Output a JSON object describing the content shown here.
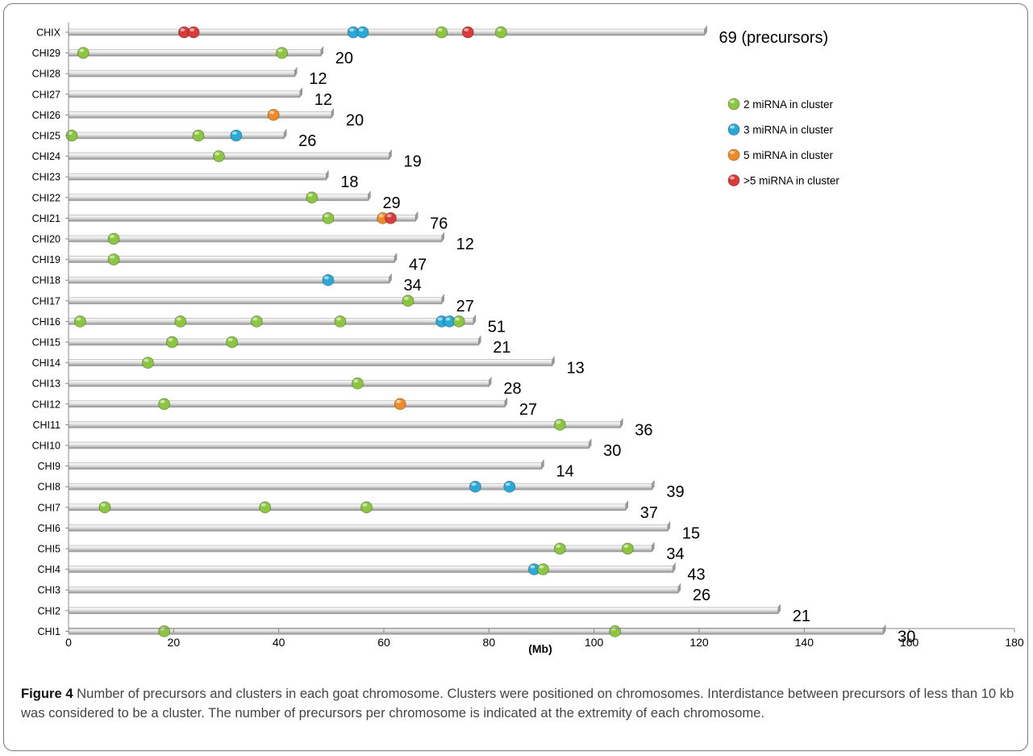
{
  "chart_data": {
    "type": "scatter",
    "xlabel": "(Mb)",
    "xlim": [
      0,
      180
    ],
    "xticks": [
      "0",
      "20",
      "40",
      "60",
      "80",
      "100",
      "120",
      "140",
      "160",
      "180"
    ],
    "legend_position": "right-top",
    "legend": [
      {
        "key": "two",
        "label": "2 miRNA in cluster",
        "color": "#8cc63e"
      },
      {
        "key": "three",
        "label": "3 miRNA in cluster",
        "color": "#29a9d8"
      },
      {
        "key": "five",
        "label": "5 miRNA in cluster",
        "color": "#f28a24"
      },
      {
        "key": "more",
        "label": ">5 miRNA in cluster",
        "color": "#d93a3a"
      }
    ],
    "chromosomes": [
      {
        "name": "CHIX",
        "length": 121,
        "count": "69 (precursors)",
        "clusters": [
          {
            "x": 22,
            "type": "more"
          },
          {
            "x": 23.8,
            "type": "more"
          },
          {
            "x": 54.2,
            "type": "three"
          },
          {
            "x": 56,
            "type": "three"
          },
          {
            "x": 71,
            "type": "two"
          },
          {
            "x": 76,
            "type": "more"
          },
          {
            "x": 82.3,
            "type": "two"
          }
        ]
      },
      {
        "name": "CHI29",
        "length": 48,
        "count": "20",
        "clusters": [
          {
            "x": 2.8,
            "type": "two"
          },
          {
            "x": 40.6,
            "type": "two"
          }
        ]
      },
      {
        "name": "CHI28",
        "length": 43,
        "count": "12",
        "clusters": []
      },
      {
        "name": "CHI27",
        "length": 44,
        "count": "12",
        "clusters": []
      },
      {
        "name": "CHI26",
        "length": 50,
        "count": "20",
        "clusters": [
          {
            "x": 39,
            "type": "five"
          }
        ]
      },
      {
        "name": "CHI25",
        "length": 41,
        "count": "26",
        "clusters": [
          {
            "x": 0.6,
            "type": "two"
          },
          {
            "x": 24.7,
            "type": "two"
          },
          {
            "x": 31.9,
            "type": "three"
          }
        ]
      },
      {
        "name": "CHI24",
        "length": 61,
        "count": "19",
        "clusters": [
          {
            "x": 28.6,
            "type": "two"
          }
        ]
      },
      {
        "name": "CHI23",
        "length": 49,
        "count": "18",
        "clusters": []
      },
      {
        "name": "CHI22",
        "length": 57,
        "count": "29",
        "clusters": [
          {
            "x": 46.3,
            "type": "two"
          }
        ]
      },
      {
        "name": "CHI21",
        "length": 66,
        "count": "76",
        "clusters": [
          {
            "x": 49.4,
            "type": "two"
          },
          {
            "x": 59.8,
            "type": "five"
          },
          {
            "x": 61.3,
            "type": "more"
          }
        ]
      },
      {
        "name": "CHI20",
        "length": 71,
        "count": "12",
        "clusters": [
          {
            "x": 8.6,
            "type": "two"
          }
        ]
      },
      {
        "name": "CHI19",
        "length": 62,
        "count": "47",
        "clusters": [
          {
            "x": 8.6,
            "type": "two"
          }
        ]
      },
      {
        "name": "CHI18",
        "length": 61,
        "count": "34",
        "clusters": [
          {
            "x": 49.4,
            "type": "three"
          }
        ]
      },
      {
        "name": "CHI17",
        "length": 71,
        "count": "27",
        "clusters": [
          {
            "x": 64.6,
            "type": "two"
          }
        ]
      },
      {
        "name": "CHI16",
        "length": 77,
        "count": "51",
        "clusters": [
          {
            "x": 2.2,
            "type": "two"
          },
          {
            "x": 21.3,
            "type": "two"
          },
          {
            "x": 35.8,
            "type": "two"
          },
          {
            "x": 51.7,
            "type": "two"
          },
          {
            "x": 71,
            "type": "three"
          },
          {
            "x": 72.5,
            "type": "three"
          },
          {
            "x": 74.3,
            "type": "two"
          }
        ]
      },
      {
        "name": "CHI15",
        "length": 78,
        "count": "21",
        "clusters": [
          {
            "x": 19.7,
            "type": "two"
          },
          {
            "x": 31.1,
            "type": "two"
          }
        ]
      },
      {
        "name": "CHI14",
        "length": 92,
        "count": "13",
        "clusters": [
          {
            "x": 15.1,
            "type": "two"
          }
        ]
      },
      {
        "name": "CHI13",
        "length": 80,
        "count": "28",
        "clusters": [
          {
            "x": 55,
            "type": "two"
          }
        ]
      },
      {
        "name": "CHI12",
        "length": 83,
        "count": "27",
        "clusters": [
          {
            "x": 18.2,
            "type": "two"
          },
          {
            "x": 63.1,
            "type": "five"
          }
        ]
      },
      {
        "name": "CHI11",
        "length": 105,
        "count": "36",
        "clusters": [
          {
            "x": 93.5,
            "type": "two"
          }
        ]
      },
      {
        "name": "CHI10",
        "length": 99,
        "count": "30",
        "clusters": []
      },
      {
        "name": "CHI9",
        "length": 90,
        "count": "14",
        "clusters": []
      },
      {
        "name": "CHI8",
        "length": 111,
        "count": "39",
        "clusters": [
          {
            "x": 77.4,
            "type": "three"
          },
          {
            "x": 83.9,
            "type": "three"
          }
        ]
      },
      {
        "name": "CHI7",
        "length": 106,
        "count": "37",
        "clusters": [
          {
            "x": 6.9,
            "type": "two"
          },
          {
            "x": 37.4,
            "type": "two"
          },
          {
            "x": 56.7,
            "type": "two"
          }
        ]
      },
      {
        "name": "CHI6",
        "length": 114,
        "count": "15",
        "clusters": []
      },
      {
        "name": "CHI5",
        "length": 111,
        "count": "34",
        "clusters": [
          {
            "x": 93.5,
            "type": "two"
          },
          {
            "x": 106.4,
            "type": "two"
          }
        ]
      },
      {
        "name": "CHI4",
        "length": 115,
        "count": "43",
        "clusters": [
          {
            "x": 88.6,
            "type": "three"
          },
          {
            "x": 90.3,
            "type": "two"
          }
        ]
      },
      {
        "name": "CHI3",
        "length": 116,
        "count": "26",
        "clusters": []
      },
      {
        "name": "CHI2",
        "length": 135,
        "count": "21",
        "clusters": []
      },
      {
        "name": "CHI1",
        "length": 155,
        "count": "30",
        "clusters": [
          {
            "x": 18.2,
            "type": "two"
          },
          {
            "x": 104,
            "type": "two"
          }
        ]
      }
    ]
  },
  "caption": {
    "title": "Figure 4",
    "text": " Number of precursors and clusters in each goat chromosome. Clusters were positioned on chromosomes. Interdistance between precursors of less than 10 kb was considered to be a cluster. The number of precursors per chromosome is indicated at the extremity of each chromosome."
  }
}
